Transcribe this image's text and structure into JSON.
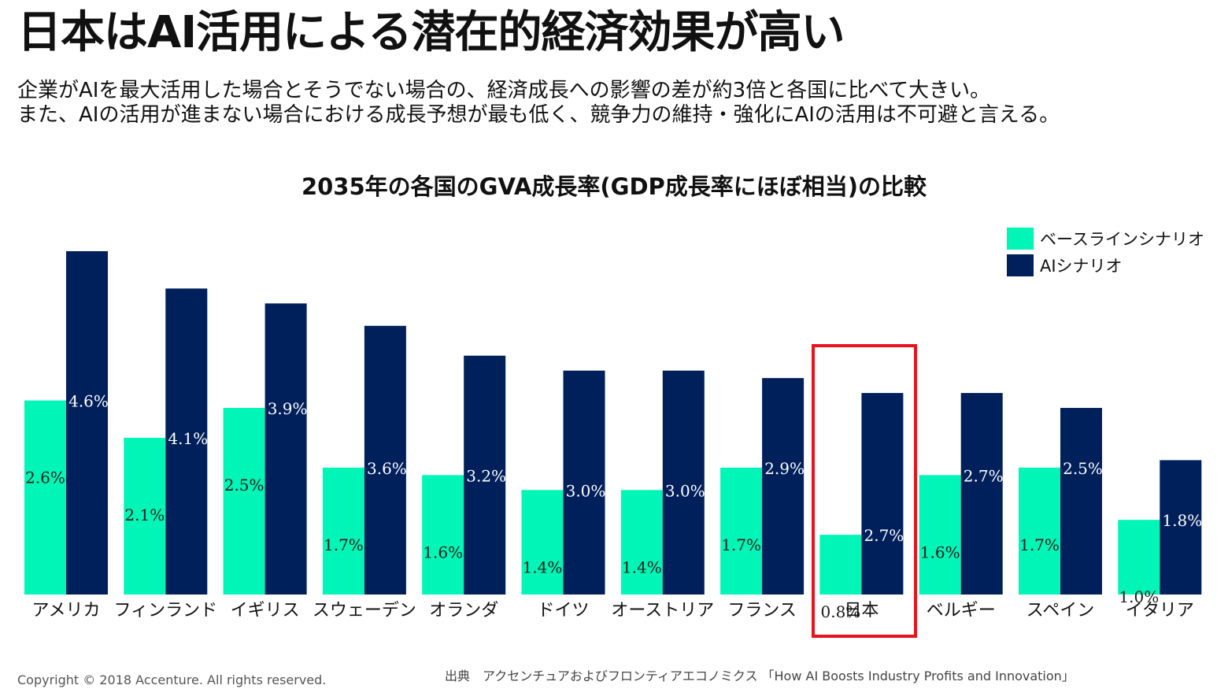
{
  "slide": {
    "title": "日本はAI活用による潜在的経済効果が高い",
    "subtitle_line1": "企業がAIを最大活用した場合とそうでない場合の、経済成長への影響の差が約3倍と各国に比べて大きい。",
    "subtitle_line2": "また、AIの活用が進まない場合における成長予想が最も低く、競争力の維持・強化にAIの活用は不可避と言える。",
    "copyright": "Copyright © 2018 Accenture. All rights reserved.",
    "source": "出典　アクセンチュアおよびフロンティアエコノミクス 「How AI Boosts Industry Profits and Innovation」",
    "highlight_category": "日本"
  },
  "colors": {
    "baseline": "#00f5b6",
    "ai": "#00205b",
    "highlight": "#e8131d"
  },
  "chart_data": {
    "type": "bar",
    "title": "2035年の各国のGVA成長率(GDP成長率にほぼ相当)の比較",
    "xlabel": "",
    "ylabel": "",
    "ylim": [
      0,
      4.6
    ],
    "grid": false,
    "legend_position": "top-right",
    "categories": [
      "アメリカ",
      "フィンランド",
      "イギリス",
      "スウェーデン",
      "オランダ",
      "ドイツ",
      "オーストリア",
      "フランス",
      "日本",
      "ベルギー",
      "スペイン",
      "イタリア"
    ],
    "series": [
      {
        "name": "ベースラインシナリオ",
        "values": [
          2.6,
          2.1,
          2.5,
          1.7,
          1.6,
          1.4,
          1.4,
          1.7,
          0.8,
          1.6,
          1.7,
          1.0
        ],
        "labels": [
          "2.6%",
          "2.1%",
          "2.5%",
          "1.7%",
          "1.6%",
          "1.4%",
          "1.4%",
          "1.7%",
          "0.8%",
          "1.6%",
          "1.7%",
          "1.0%"
        ]
      },
      {
        "name": "AIシナリオ",
        "values": [
          4.6,
          4.1,
          3.9,
          3.6,
          3.2,
          3.0,
          3.0,
          2.9,
          2.7,
          2.7,
          2.5,
          1.8
        ],
        "labels": [
          "4.6%",
          "4.1%",
          "3.9%",
          "3.6%",
          "3.2%",
          "3.0%",
          "3.0%",
          "2.9%",
          "2.7%",
          "2.7%",
          "2.5%",
          "1.8%"
        ]
      }
    ]
  }
}
